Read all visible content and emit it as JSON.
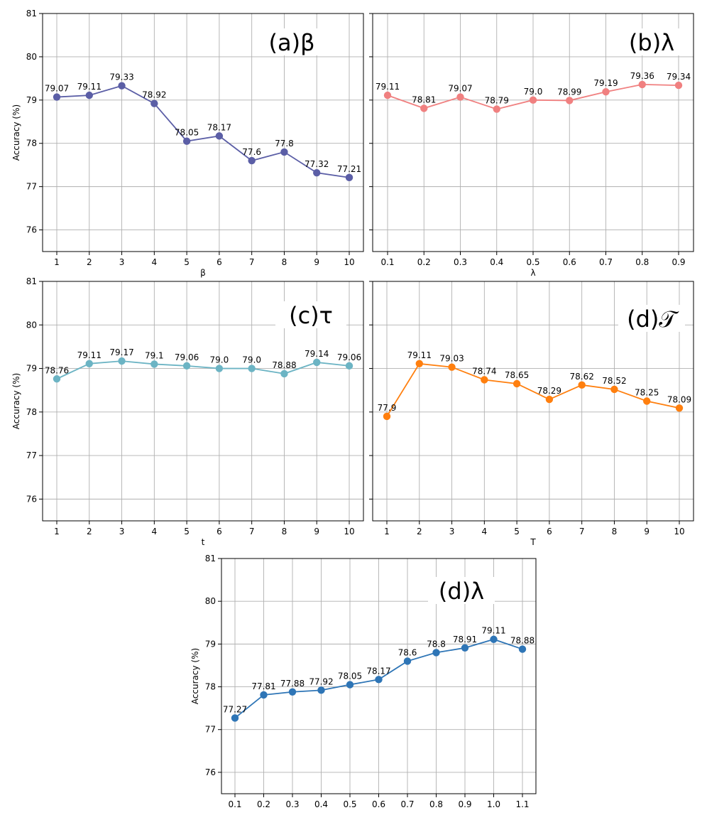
{
  "chart_data": [
    {
      "type": "line",
      "panel": "a",
      "title": "(a)β",
      "xlabel": "β",
      "ylabel": "Accuracy (%)",
      "color": "#5b5ea6",
      "x": [
        "1",
        "2",
        "3",
        "4",
        "5",
        "6",
        "7",
        "8",
        "9",
        "10"
      ],
      "values": [
        79.07,
        79.11,
        79.33,
        78.92,
        78.05,
        78.17,
        77.6,
        77.8,
        77.32,
        77.21
      ],
      "labels": [
        "79.07",
        "79.11",
        "79.33",
        "78.92",
        "78.05",
        "78.17",
        "77.6",
        "77.8",
        "77.32",
        "77.21"
      ],
      "yticks": [
        "76",
        "77",
        "78",
        "79",
        "80",
        "81"
      ],
      "ylim": [
        75.5,
        81
      ],
      "grid": true
    },
    {
      "type": "line",
      "panel": "b",
      "title": "(b)λ",
      "xlabel": "λ",
      "ylabel": "",
      "color": "#f08080",
      "x": [
        "0.1",
        "0.2",
        "0.3",
        "0.4",
        "0.5",
        "0.6",
        "0.7",
        "0.8",
        "0.9"
      ],
      "values": [
        79.11,
        78.81,
        79.07,
        78.79,
        79.0,
        78.99,
        79.19,
        79.36,
        79.34
      ],
      "labels": [
        "79.11",
        "78.81",
        "79.07",
        "78.79",
        "79.0",
        "78.99",
        "79.19",
        "79.36",
        "79.34"
      ],
      "yticks": [],
      "ylim": [
        75.5,
        81
      ],
      "grid": true
    },
    {
      "type": "line",
      "panel": "c",
      "title": "(c)τ",
      "xlabel": "t",
      "ylabel": "Accuracy (%)",
      "color": "#6cb4c4",
      "x": [
        "1",
        "2",
        "3",
        "4",
        "5",
        "6",
        "7",
        "8",
        "9",
        "10"
      ],
      "values": [
        78.76,
        79.11,
        79.17,
        79.1,
        79.06,
        79.0,
        79.0,
        78.88,
        79.14,
        79.06
      ],
      "labels": [
        "78.76",
        "79.11",
        "79.17",
        "79.1",
        "79.06",
        "79.0",
        "79.0",
        "78.88",
        "79.14",
        "79.06"
      ],
      "yticks": [
        "76",
        "77",
        "78",
        "79",
        "80",
        "81"
      ],
      "ylim": [
        75.5,
        81
      ],
      "grid": true
    },
    {
      "type": "line",
      "panel": "d",
      "title": "(d)𝒯",
      "xlabel": "T",
      "ylabel": "",
      "color": "#ff7f0e",
      "x": [
        "1",
        "2",
        "3",
        "4",
        "5",
        "6",
        "7",
        "8",
        "9",
        "10"
      ],
      "values": [
        77.9,
        79.11,
        79.03,
        78.74,
        78.65,
        78.29,
        78.62,
        78.52,
        78.25,
        78.09
      ],
      "labels": [
        "77.9",
        "79.11",
        "79.03",
        "78.74",
        "78.65",
        "78.29",
        "78.62",
        "78.52",
        "78.25",
        "78.09"
      ],
      "yticks": [],
      "ylim": [
        75.5,
        81
      ],
      "grid": true
    },
    {
      "type": "line",
      "panel": "e",
      "title": "(d)λ",
      "xlabel": "",
      "ylabel": "Accuracy (%)",
      "color": "#2e75b6",
      "x": [
        "0.1",
        "0.2",
        "0.3",
        "0.4",
        "0.5",
        "0.6",
        "0.7",
        "0.8",
        "0.9",
        "1.0",
        "1.1"
      ],
      "values": [
        77.27,
        77.81,
        77.88,
        77.92,
        78.05,
        78.17,
        78.6,
        78.8,
        78.91,
        79.11,
        78.88
      ],
      "labels": [
        "77.27",
        "77.81",
        "77.88",
        "77.92",
        "78.05",
        "78.17",
        "78.6",
        "78.8",
        "78.91",
        "79.11",
        "78.88"
      ],
      "yticks": [
        "76",
        "77",
        "78",
        "79",
        "80",
        "81"
      ],
      "ylim": [
        75.5,
        81
      ],
      "grid": true
    }
  ]
}
